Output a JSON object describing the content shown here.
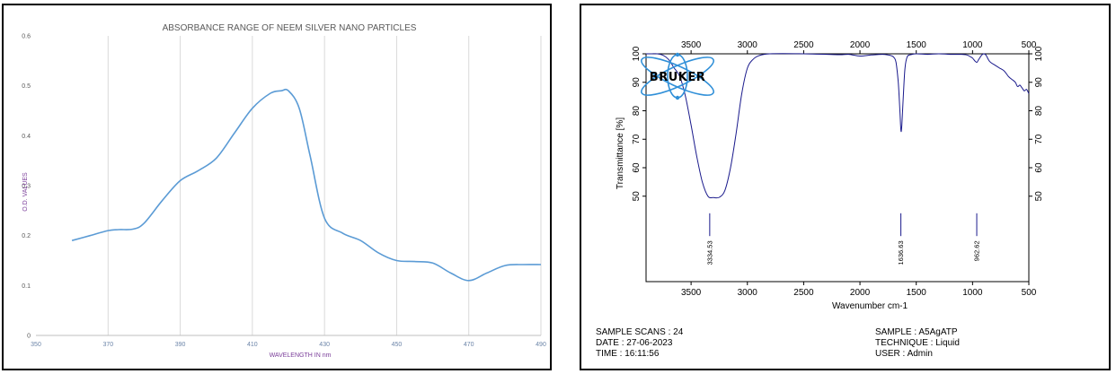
{
  "colors": {
    "uv_line": "#5b9bd5",
    "ir_line": "#1a1a8c",
    "grid": "#d9d9d9",
    "logo_orbit": "#2f8fd8"
  },
  "chart_data": [
    {
      "type": "line",
      "title": "ABSORBANCE RANGE OF NEEM SILVER NANO PARTICLES",
      "xlabel": "WAVELENGTH IN nm",
      "ylabel": "O.D. VALUES",
      "xlim": [
        350,
        490
      ],
      "ylim": [
        0,
        0.6
      ],
      "x_ticks": [
        "350",
        "370",
        "390",
        "410",
        "430",
        "450",
        "470",
        "490"
      ],
      "y_ticks": [
        "0",
        "0.1",
        "0.2",
        "0.3",
        "0.4",
        "0.5",
        "0.6"
      ],
      "grid": "vertical",
      "series": [
        {
          "x": [
            360,
            365,
            370,
            373,
            377,
            380,
            385,
            390,
            395,
            400,
            405,
            410,
            415,
            418,
            420,
            423,
            426,
            430,
            435,
            440,
            445,
            450,
            455,
            460,
            465,
            470,
            475,
            480,
            485,
            490
          ],
          "y": [
            0.19,
            0.2,
            0.21,
            0.212,
            0.213,
            0.225,
            0.27,
            0.31,
            0.33,
            0.355,
            0.405,
            0.455,
            0.485,
            0.49,
            0.49,
            0.455,
            0.36,
            0.235,
            0.205,
            0.19,
            0.165,
            0.15,
            0.148,
            0.145,
            0.125,
            0.11,
            0.125,
            0.14,
            0.142,
            0.142
          ]
        }
      ]
    },
    {
      "type": "line",
      "xlabel": "Wavenumber cm-1",
      "ylabel": "Transmittance [%]",
      "xlim": [
        3900,
        500
      ],
      "ylim": [
        20,
        100
      ],
      "x_ticks": [
        "3500",
        "3000",
        "2500",
        "2000",
        "1500",
        "1000",
        "500"
      ],
      "y_ticks": [
        "50",
        "60",
        "70",
        "80",
        "90",
        "100"
      ],
      "series": [
        {
          "x": [
            3900,
            3850,
            3800,
            3750,
            3700,
            3650,
            3600,
            3550,
            3500,
            3450,
            3400,
            3350,
            3300,
            3250,
            3200,
            3150,
            3100,
            3050,
            3000,
            2950,
            2900,
            2800,
            2500,
            2200,
            2100,
            2000,
            1900,
            1800,
            1750,
            1720,
            1700,
            1680,
            1660,
            1645,
            1636,
            1628,
            1615,
            1600,
            1580,
            1550,
            1500,
            1400,
            1300,
            1200,
            1100,
            1050,
            1020,
            1000,
            980,
            962,
            945,
            920,
            900,
            880,
            860,
            840,
            800,
            760,
            720,
            680,
            650,
            620,
            600,
            580,
            560,
            540,
            520,
            500
          ],
          "y": [
            100,
            100,
            100,
            99.5,
            98,
            95,
            92,
            85,
            75,
            64,
            55,
            50,
            49.5,
            49.6,
            52,
            60,
            72,
            86,
            95,
            98,
            99.3,
            100,
            100,
            99.7,
            99.8,
            99.2,
            99.6,
            99.8,
            99.6,
            99.3,
            98.8,
            97,
            90,
            80,
            73,
            75,
            85,
            95,
            99,
            99.7,
            100,
            99.8,
            100,
            99.8,
            99.8,
            99.6,
            99,
            98.5,
            97.5,
            97,
            98,
            99.5,
            100,
            99.5,
            98,
            97,
            96,
            95,
            94,
            92,
            91,
            90,
            88.5,
            89,
            88,
            87,
            87.5,
            86
          ]
        }
      ],
      "peaks": [
        "3334.53",
        "1636.63",
        "962.62"
      ],
      "logo": "BRUKER",
      "metadata": {
        "sample_scans": "SAMPLE SCANS : 24",
        "date": "DATE : 27-06-2023",
        "time": "TIME : 16:11:56",
        "sample": "SAMPLE : A5AgATP",
        "technique": "TECHNIQUE : Liquid",
        "user": "USER : Admin"
      }
    }
  ]
}
